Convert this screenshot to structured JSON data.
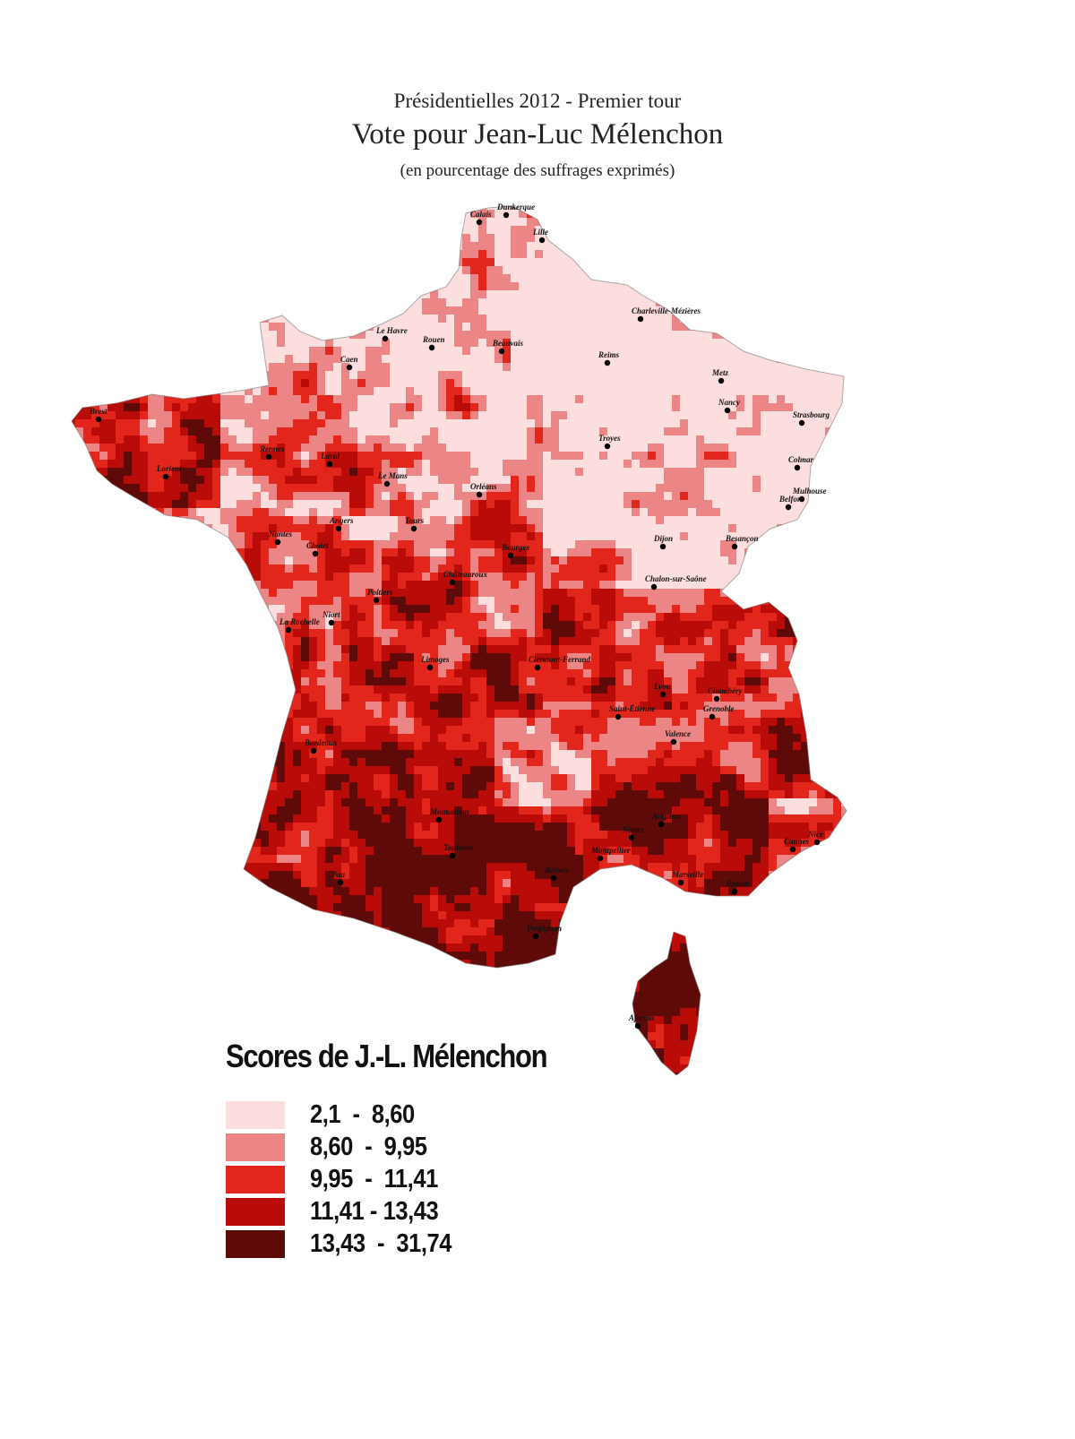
{
  "title": {
    "line1": "Présidentielles 2012 - Premier tour",
    "line2": "Vote pour Jean-Luc Mélenchon",
    "line3": "(en pourcentage des suffrages exprimés)"
  },
  "map": {
    "type": "choropleth",
    "region": "France (metropolitan, including Corsica)",
    "unit": "percent of votes cast",
    "cities": [
      "Dunkerque",
      "Calais",
      "Lille",
      "Le Havre",
      "Rouen",
      "Beauvais",
      "Caen",
      "Charleville-Mézières",
      "Reims",
      "Metz",
      "Nancy",
      "Strasbourg",
      "Troyes",
      "Colmar",
      "Mulhouse",
      "Belfort",
      "Brest",
      "Rennes",
      "Laval",
      "Le Mans",
      "Orléans",
      "Lorient",
      "Angers",
      "Tours",
      "Nantes",
      "Cholet",
      "Bourges",
      "Dijon",
      "Besançon",
      "Châteauroux",
      "Chalon-sur-Saône",
      "Poitiers",
      "Niort",
      "La Rochelle",
      "Limoges",
      "Clermont-Ferrand",
      "Lyon",
      "Chambéry",
      "Saint-Étienne",
      "Grenoble",
      "Valence",
      "Bordeaux",
      "Montauban",
      "Toulouse",
      "Pau",
      "Montpellier",
      "Nîmes",
      "Avignon",
      "Béziers",
      "Marseille",
      "Toulon",
      "Cannes",
      "Nice",
      "Perpignan",
      "Ajaccio"
    ]
  },
  "legend": {
    "title": "Scores de J.-L. Mélenchon",
    "classes": [
      {
        "label": "2,1  -  8,60",
        "min": 2.1,
        "max": 8.6,
        "color": "#fcdede"
      },
      {
        "label": "8,60  -  9,95",
        "min": 8.6,
        "max": 9.95,
        "color": "#ec8585"
      },
      {
        "label": "9,95  -  11,41",
        "min": 9.95,
        "max": 11.41,
        "color": "#e3261b"
      },
      {
        "label": "11,41 - 13,43",
        "min": 11.41,
        "max": 13.43,
        "color": "#b90c08"
      },
      {
        "label": "13,43  -  31,74",
        "min": 13.43,
        "max": 31.74,
        "color": "#5e0a08"
      }
    ]
  }
}
